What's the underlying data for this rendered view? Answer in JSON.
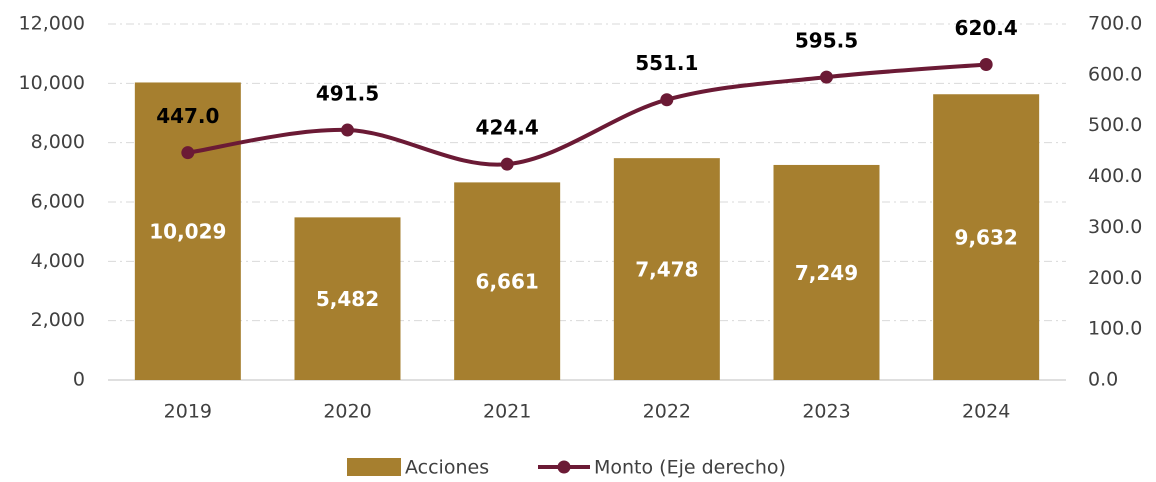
{
  "chart_data": {
    "type": "bar_line",
    "categories": [
      "2019",
      "2020",
      "2021",
      "2022",
      "2023",
      "2024"
    ],
    "series": [
      {
        "name": "Acciones",
        "color": "#a67f2f",
        "values": [
          10029,
          5482,
          6661,
          7478,
          7249,
          9632
        ],
        "value_labels": [
          "10,029",
          "5,482",
          "6,661",
          "7,478",
          "7,249",
          "9,632"
        ]
      },
      {
        "name": "Monto (Eje derecho)",
        "color": "#6b1a35",
        "axis": "y2",
        "values": [
          447.0,
          491.5,
          424.4,
          551.1,
          595.5,
          620.4
        ],
        "value_labels": [
          "447.0",
          "491.5",
          "424.4",
          "551.1",
          "595.5",
          "620.4"
        ]
      }
    ],
    "ylim": [
      0,
      12000
    ],
    "yticks": [
      0,
      {
        "value": 2000,
        "label": "2,000"
      },
      {
        "value": 4000,
        "label": "4,000"
      },
      {
        "value": 6000,
        "label": "6,000"
      },
      {
        "value": 8000,
        "label": "8,000"
      },
      {
        "value": 10000,
        "label": "10,000"
      },
      {
        "value": 12000,
        "label": "12,000"
      }
    ],
    "y2lim": [
      0,
      700
    ],
    "y2ticks": [
      {
        "value": 0,
        "label": "0.0"
      },
      {
        "value": 100,
        "label": "100.0"
      },
      {
        "value": 200,
        "label": "200.0"
      },
      {
        "value": 300,
        "label": "300.0"
      },
      {
        "value": 400,
        "label": "400.0"
      },
      {
        "value": 500,
        "label": "500.0"
      },
      {
        "value": 600,
        "label": "600.0"
      },
      {
        "value": 700,
        "label": "700.0"
      }
    ],
    "grid": true,
    "legend": "bottom"
  }
}
